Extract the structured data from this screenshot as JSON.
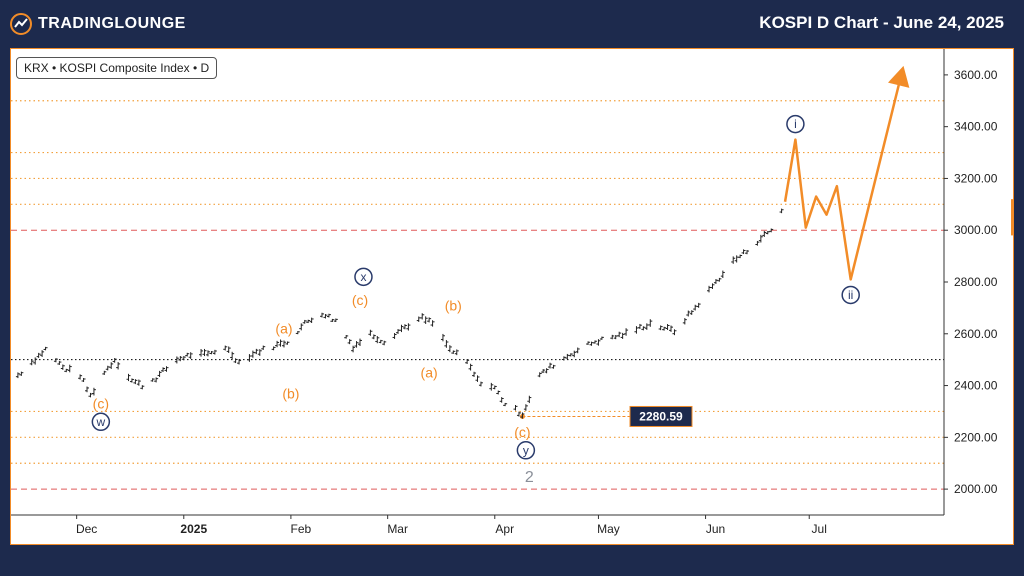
{
  "header": {
    "brand": "TRADINGLOUNGE",
    "title": "KOSPI D Chart - June 24, 2025"
  },
  "legend": {
    "label": "KRX • KOSPI Composite Index • D"
  },
  "colors": {
    "background": "#1d2a4d",
    "wave_orange": "#f28c28",
    "wave_navy": "#2a3b6b",
    "price_bars": "#222222",
    "dotted_orange": "#f2a03d",
    "dashed_red": "#e05a5a",
    "price_badge": "#1d2a4d"
  },
  "chart_data": {
    "type": "line",
    "title": "",
    "xlabel": "",
    "ylabel": "",
    "ylim": [
      1900,
      3700
    ],
    "y_ticks": [
      "2000.00",
      "2200.00",
      "2400.00",
      "2600.00",
      "2800.00",
      "3000.00",
      "3200.00",
      "3400.00",
      "3600.00"
    ],
    "x_tick_labels": [
      "Dec",
      "2025",
      "Feb",
      "Mar",
      "Apr",
      "May",
      "Jun",
      "Jul"
    ],
    "grid": false,
    "price_series": {
      "name": "",
      "x": [
        "2024-11-14",
        "2024-11-18",
        "2024-11-22",
        "2024-11-27",
        "2024-12-02",
        "2024-12-05",
        "2024-12-09",
        "2024-12-12",
        "2024-12-17",
        "2024-12-20",
        "2024-12-24",
        "2024-12-30",
        "2025-01-03",
        "2025-01-08",
        "2025-01-13",
        "2025-01-17",
        "2025-01-22",
        "2025-01-31",
        "2025-02-05",
        "2025-02-10",
        "2025-02-14",
        "2025-02-19",
        "2025-02-24",
        "2025-02-28",
        "2025-03-05",
        "2025-03-11",
        "2025-03-14",
        "2025-03-19",
        "2025-03-24",
        "2025-03-27",
        "2025-04-01",
        "2025-04-04",
        "2025-04-09",
        "2025-04-14",
        "2025-04-18",
        "2025-04-24",
        "2025-04-30",
        "2025-05-09",
        "2025-05-16",
        "2025-05-23",
        "2025-05-29",
        "2025-06-04",
        "2025-06-09",
        "2025-06-13",
        "2025-06-17",
        "2025-06-20",
        "2025-06-24"
      ],
      "y": [
        2440,
        2490,
        2540,
        2470,
        2440,
        2360,
        2450,
        2500,
        2420,
        2400,
        2430,
        2500,
        2520,
        2520,
        2550,
        2490,
        2530,
        2570,
        2640,
        2680,
        2650,
        2550,
        2600,
        2570,
        2620,
        2660,
        2640,
        2540,
        2490,
        2420,
        2390,
        2330,
        2290,
        2440,
        2480,
        2530,
        2570,
        2600,
        2640,
        2610,
        2700,
        2800,
        2880,
        2920,
        2970,
        3000,
        3100
      ]
    },
    "projection": {
      "name": "",
      "x": [
        "2025-06-24",
        "2025-06-27",
        "2025-06-30",
        "2025-07-03",
        "2025-07-06",
        "2025-07-09",
        "2025-07-13",
        "2025-07-28"
      ],
      "y": [
        3110,
        3350,
        3010,
        3130,
        3060,
        3170,
        2810,
        3620
      ]
    },
    "levels": {
      "current_price_line": 3000,
      "black_dotted": 2500,
      "red_dashed": [
        3000,
        2000
      ],
      "orange_dotted": [
        3500,
        3300,
        3200,
        3100,
        2300,
        2200,
        2100
      ]
    },
    "price_badge": {
      "value": "2280.59",
      "y": 2280.59
    },
    "annotations": [
      {
        "label": "(c)",
        "style": "orange",
        "x": "2024-12-08",
        "y": 2330
      },
      {
        "label": "w",
        "style": "navy-circle",
        "x": "2024-12-08",
        "y": 2260
      },
      {
        "label": "(a)",
        "style": "orange",
        "x": "2025-01-30",
        "y": 2620
      },
      {
        "label": "(b)",
        "style": "orange",
        "x": "2025-02-01",
        "y": 2370
      },
      {
        "label": "(c)",
        "style": "orange",
        "x": "2025-02-21",
        "y": 2730
      },
      {
        "label": "x",
        "style": "navy-circle",
        "x": "2025-02-22",
        "y": 2820
      },
      {
        "label": "(a)",
        "style": "orange",
        "x": "2025-03-13",
        "y": 2450
      },
      {
        "label": "(b)",
        "style": "orange",
        "x": "2025-03-20",
        "y": 2710
      },
      {
        "label": "(c)",
        "style": "orange",
        "x": "2025-04-09",
        "y": 2220
      },
      {
        "label": "y",
        "style": "navy-circle",
        "x": "2025-04-10",
        "y": 2150
      },
      {
        "label": "2",
        "style": "gray",
        "x": "2025-04-11",
        "y": 2050
      },
      {
        "label": "i",
        "style": "navy-circle",
        "x": "2025-06-27",
        "y": 3410
      },
      {
        "label": "ii",
        "style": "navy-circle",
        "x": "2025-07-13",
        "y": 2750
      }
    ]
  }
}
